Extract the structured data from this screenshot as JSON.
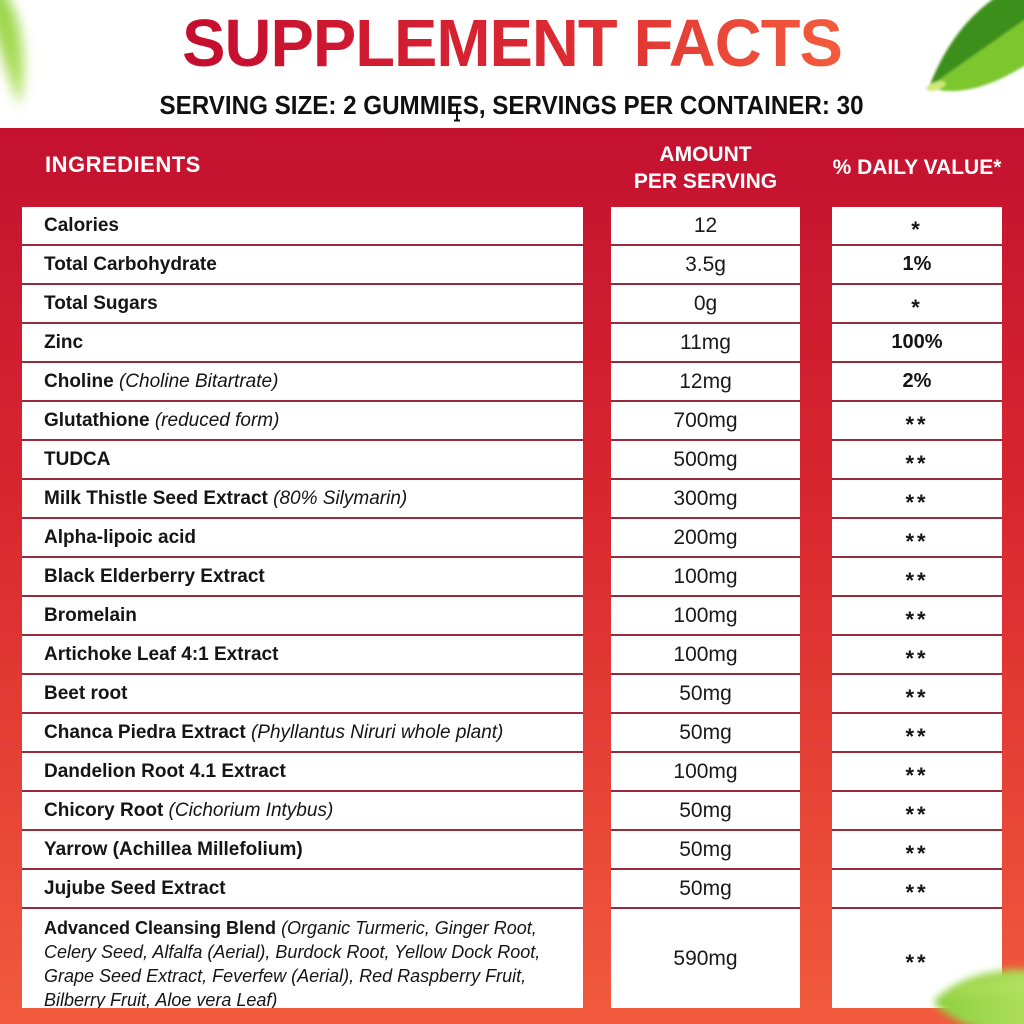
{
  "header": {
    "title": "SUPPLEMENT FACTS",
    "subtitle": "SERVING SIZE: 2 GUMMIES, SERVINGS PER CONTAINER: 30"
  },
  "table": {
    "header": {
      "ingredients": "INGREDIENTS",
      "amount_line1": "AMOUNT",
      "amount_line2": "PER SERVING",
      "daily_value": "% DAILY VALUE*"
    },
    "rows": [
      {
        "name": "Calories",
        "detail": "",
        "amount": "12",
        "dv": "*"
      },
      {
        "name": "Total Carbohydrate",
        "detail": "",
        "amount": "3.5g",
        "dv": "1%"
      },
      {
        "name": "Total Sugars",
        "detail": "",
        "amount": "0g",
        "dv": "*"
      },
      {
        "name": "Zinc",
        "detail": "",
        "amount": "11mg",
        "dv": "100%"
      },
      {
        "name": "Choline",
        "detail": "(Choline Bitartrate)",
        "amount": "12mg",
        "dv": "2%"
      },
      {
        "name": "Glutathione",
        "detail": "(reduced form)",
        "amount": "700mg",
        "dv": "**"
      },
      {
        "name": "TUDCA",
        "detail": "",
        "amount": "500mg",
        "dv": "**"
      },
      {
        "name": "Milk Thistle Seed Extract",
        "detail": "(80% Silymarin)",
        "amount": "300mg",
        "dv": "**"
      },
      {
        "name": "Alpha-lipoic acid",
        "detail": "",
        "amount": "200mg",
        "dv": "**"
      },
      {
        "name": "Black Elderberry Extract",
        "detail": "",
        "amount": "100mg",
        "dv": "**"
      },
      {
        "name": "Bromelain",
        "detail": "",
        "amount": "100mg",
        "dv": "**"
      },
      {
        "name": "Artichoke Leaf 4:1 Extract",
        "detail": "",
        "amount": "100mg",
        "dv": "**"
      },
      {
        "name": "Beet root",
        "detail": "",
        "amount": "50mg",
        "dv": "**"
      },
      {
        "name": "Chanca Piedra Extract",
        "detail": "(Phyllantus Niruri whole plant)",
        "amount": "50mg",
        "dv": "**"
      },
      {
        "name": "Dandelion Root 4.1 Extract",
        "detail": "",
        "amount": "100mg",
        "dv": "**"
      },
      {
        "name": "Chicory Root",
        "detail": "(Cichorium Intybus)",
        "amount": "50mg",
        "dv": "**"
      },
      {
        "name": "Yarrow (Achillea Millefolium)",
        "detail": "",
        "amount": "50mg",
        "dv": "**"
      },
      {
        "name": "Jujube Seed Extract",
        "detail": "",
        "amount": "50mg",
        "dv": "**"
      },
      {
        "name": "Advanced Cleansing Blend",
        "detail": "(Organic Turmeric, Ginger Root, Celery Seed, Alfalfa (Aerial), Burdock Root, Yellow Dock Root, Grape Seed Extract, Feverfew (Aerial), Red Raspberry Fruit, Bilberry Fruit, Aloe vera Leaf)",
        "amount": "590mg",
        "dv": "**",
        "tall": true
      }
    ]
  },
  "colors": {
    "title_left": "#c50d2f",
    "title_mid": "#dc2a32",
    "title_right": "#f35a3c",
    "panel_top": "#c31130",
    "panel_mid": "#d9272f",
    "panel_bottom": "#f15b3d",
    "separator": "#952c3c",
    "header_text": "#ffffff",
    "text": "#151515",
    "leaf_dark": "#3e8f1b",
    "leaf_light": "#7cc72e",
    "leaf_blur_light": "#8ccf3e",
    "leaf_blur_pale": "#b4e160",
    "leaf_stem": "#cfe97a"
  }
}
